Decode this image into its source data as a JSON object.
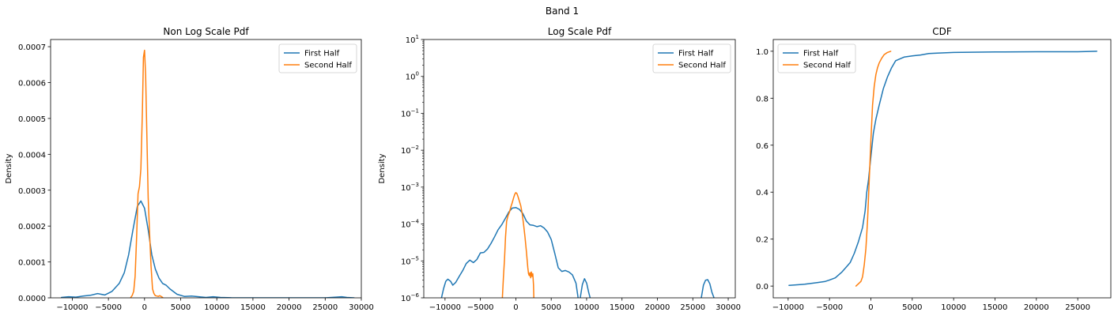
{
  "figure": {
    "suptitle": "Band 1"
  },
  "colors": {
    "first": "#1f77b4",
    "second": "#ff7f0e"
  },
  "chart_data": [
    {
      "type": "line",
      "title": "Non Log Scale Pdf",
      "ylabel": "Density",
      "xlabel": "",
      "yscale": "linear",
      "xlim": [
        -13000,
        30000
      ],
      "ylim": [
        0,
        0.00072
      ],
      "xticks": [
        -10000,
        -5000,
        0,
        5000,
        10000,
        15000,
        20000,
        25000,
        30000
      ],
      "xtick_labels": [
        "−10000",
        "−5000",
        "0",
        "5000",
        "10000",
        "15000",
        "20000",
        "25000",
        "30000"
      ],
      "yticks": [
        0,
        0.0001,
        0.0002,
        0.0003,
        0.0004,
        0.0005,
        0.0006,
        0.0007
      ],
      "ytick_labels": [
        "0.0000",
        "0.0001",
        "0.0002",
        "0.0003",
        "0.0004",
        "0.0005",
        "0.0006",
        "0.0007"
      ],
      "legend": {
        "placement": "top-right",
        "entries": [
          "First Half",
          "Second Half"
        ]
      },
      "series": [
        {
          "name": "First Half",
          "color": "#1f77b4",
          "x": [
            -11500,
            -10500,
            -9500,
            -8500,
            -7500,
            -6500,
            -5500,
            -4500,
            -3500,
            -2800,
            -2200,
            -1600,
            -1000,
            -500,
            0,
            500,
            1000,
            1500,
            2000,
            2500,
            3000,
            3500,
            4500,
            5500,
            6500,
            7500,
            8500,
            9500,
            10500,
            12000,
            15000,
            20000,
            25000,
            26500,
            27300,
            28000,
            29000
          ],
          "y": [
            1e-06,
            3e-06,
            2e-06,
            5e-06,
            7e-06,
            1.2e-05,
            8e-06,
            1.8e-05,
            4e-05,
            7e-05,
            0.00012,
            0.00019,
            0.000255,
            0.00027,
            0.00025,
            0.00019,
            0.00012,
            8e-05,
            5.5e-05,
            4e-05,
            3.5e-05,
            2.5e-05,
            1e-05,
            4e-06,
            5e-06,
            3e-06,
            1e-06,
            3e-06,
            1e-06,
            2e-07,
            1e-07,
            1e-07,
            1e-07,
            2e-06,
            3e-06,
            1e-06,
            1e-07
          ]
        },
        {
          "name": "Second Half",
          "color": "#ff7f0e",
          "x": [
            -1900,
            -1700,
            -1500,
            -1300,
            -1100,
            -900,
            -700,
            -500,
            -300,
            -150,
            0,
            150,
            300,
            500,
            700,
            900,
            1100,
            1300,
            1500,
            1700,
            1900,
            2100,
            2300,
            2500
          ],
          "y": [
            1e-06,
            7e-06,
            1.8e-05,
            6e-05,
            0.00017,
            0.00029,
            0.00031,
            0.00036,
            0.00052,
            0.00067,
            0.00069,
            0.00062,
            0.00047,
            0.00028,
            0.00018,
            9e-05,
            2.5e-05,
            1.2e-05,
            6e-06,
            5e-06,
            4e-06,
            6e-06,
            4e-06,
            1e-06
          ]
        }
      ]
    },
    {
      "type": "line",
      "title": "Log Scale Pdf",
      "ylabel": "Density",
      "xlabel": "",
      "yscale": "log",
      "xlim": [
        -13000,
        31000
      ],
      "ylim": [
        1e-06,
        10
      ],
      "xticks": [
        -10000,
        -5000,
        0,
        5000,
        10000,
        15000,
        20000,
        25000,
        30000
      ],
      "xtick_labels": [
        "−10000",
        "−5000",
        "0",
        "5000",
        "10000",
        "15000",
        "20000",
        "25000",
        "30000"
      ],
      "yticks": [
        1e-06,
        1e-05,
        0.0001,
        0.001,
        0.01,
        0.1,
        1,
        10
      ],
      "ytick_labels": [
        {
          "base": "10",
          "exp": "−6"
        },
        {
          "base": "10",
          "exp": "−5"
        },
        {
          "base": "10",
          "exp": "−4"
        },
        {
          "base": "10",
          "exp": "−3"
        },
        {
          "base": "10",
          "exp": "−2"
        },
        {
          "base": "10",
          "exp": "−1"
        },
        {
          "base": "10",
          "exp": "0"
        },
        {
          "base": "10",
          "exp": "1"
        }
      ],
      "legend": {
        "placement": "top-right",
        "entries": [
          "First Half",
          "Second Half"
        ]
      },
      "series": [
        {
          "name": "First Half",
          "color": "#1f77b4",
          "segments": [
            {
              "x": [
                -10500,
                -10200,
                -9900,
                -9600,
                -9200,
                -8900,
                -8500,
                -8000,
                -7500,
                -7000,
                -6500,
                -6000,
                -5500,
                -5000,
                -4500,
                -4000,
                -3500,
                -3000,
                -2500,
                -2000,
                -1500,
                -1000,
                -500,
                0,
                500,
                1000,
                1500,
                2000,
                2500,
                3000,
                3500,
                4000,
                4500,
                5000,
                5500,
                6000,
                6500,
                7000,
                7500,
                8000,
                8500,
                8800
              ],
              "y": [
                1e-06,
                1.8e-06,
                2.8e-06,
                3.2e-06,
                2.8e-06,
                2.2e-06,
                2.6e-06,
                3.8e-06,
                5.5e-06,
                8.5e-06,
                1.05e-05,
                9e-06,
                1.1e-05,
                1.65e-05,
                1.7e-05,
                2.1e-05,
                3e-05,
                4.5e-05,
                7e-05,
                9.5e-05,
                0.00014,
                0.00021,
                0.00027,
                0.00028,
                0.00025,
                0.00019,
                0.00012,
                9.5e-05,
                9.2e-05,
                8.5e-05,
                9e-05,
                7.8e-05,
                6e-05,
                3.8e-05,
                1.6e-05,
                6.5e-06,
                5.2e-06,
                5.5e-06,
                5e-06,
                4.2e-06,
                2.5e-06,
                1e-06
              ]
            },
            {
              "x": [
                9100,
                9400,
                9700,
                10000,
                10300,
                10500
              ],
              "y": [
                1e-06,
                2.3e-06,
                3.3e-06,
                2.5e-06,
                1.4e-06,
                1e-06
              ]
            },
            {
              "x": [
                26200,
                26500,
                26800,
                27100,
                27400,
                27700,
                28000
              ],
              "y": [
                1e-06,
                2.2e-06,
                3e-06,
                3.1e-06,
                2.4e-06,
                1.4e-06,
                1e-06
              ]
            }
          ]
        },
        {
          "name": "Second Half",
          "color": "#ff7f0e",
          "segments": [
            {
              "x": [
                -1900,
                -1750,
                -1600,
                -1450,
                -1300,
                -1100,
                -900,
                -700,
                -500,
                -300,
                -150,
                0,
                150,
                300,
                500,
                700,
                900,
                1100,
                1300,
                1500,
                1700,
                1800,
                1900,
                2000,
                2100,
                2200,
                2300,
                2400,
                2500,
                2550
              ],
              "y": [
                1e-06,
                3.5e-06,
                1.1e-05,
                4.5e-05,
                0.00012,
                0.00017,
                0.00021,
                0.00029,
                0.00038,
                0.00052,
                0.00064,
                0.00071,
                0.00067,
                0.00056,
                0.00042,
                0.00031,
                0.00019,
                9.5e-05,
                4.5e-05,
                1.8e-05,
                6.5e-06,
                4.5e-06,
                4e-06,
                4.8e-06,
                3.5e-06,
                5e-06,
                3.8e-06,
                4.5e-06,
                2.2e-06,
                1e-06
              ]
            }
          ]
        }
      ]
    },
    {
      "type": "line",
      "title": "CDF",
      "ylabel": "",
      "xlabel": "",
      "yscale": "linear",
      "xlim": [
        -11800,
        29000
      ],
      "ylim": [
        -0.05,
        1.05
      ],
      "xticks": [
        -10000,
        -5000,
        0,
        5000,
        10000,
        15000,
        20000,
        25000
      ],
      "xtick_labels": [
        "−10000",
        "−5000",
        "0",
        "5000",
        "10000",
        "15000",
        "20000",
        "25000"
      ],
      "yticks": [
        0,
        0.2,
        0.4,
        0.6,
        0.8,
        1.0
      ],
      "ytick_labels": [
        "0.0",
        "0.2",
        "0.4",
        "0.6",
        "0.8",
        "1.0"
      ],
      "legend": {
        "placement": "top-left",
        "entries": [
          "First Half",
          "Second Half"
        ]
      },
      "series": [
        {
          "name": "First Half",
          "color": "#1f77b4",
          "x": [
            -9900,
            -8000,
            -6500,
            -5500,
            -5000,
            -4300,
            -3500,
            -3000,
            -2500,
            -2000,
            -1500,
            -1000,
            -700,
            -500,
            -300,
            0,
            300,
            600,
            1000,
            1500,
            2000,
            2500,
            3000,
            4000,
            5000,
            6000,
            7000,
            8000,
            10000,
            12000,
            15000,
            20000,
            25000,
            27300
          ],
          "y": [
            0.003,
            0.008,
            0.015,
            0.02,
            0.026,
            0.035,
            0.06,
            0.08,
            0.1,
            0.14,
            0.19,
            0.25,
            0.32,
            0.4,
            0.45,
            0.55,
            0.65,
            0.71,
            0.77,
            0.84,
            0.89,
            0.93,
            0.96,
            0.975,
            0.98,
            0.984,
            0.99,
            0.992,
            0.995,
            0.996,
            0.997,
            0.998,
            0.998,
            1.0
          ]
        },
        {
          "name": "Second Half",
          "color": "#ff7f0e",
          "x": [
            -1800,
            -1500,
            -1200,
            -1000,
            -800,
            -600,
            -400,
            -200,
            0,
            200,
            400,
            600,
            800,
            1000,
            1300,
            1600,
            2000,
            2400
          ],
          "y": [
            0.0,
            0.01,
            0.02,
            0.04,
            0.09,
            0.16,
            0.28,
            0.45,
            0.62,
            0.77,
            0.85,
            0.9,
            0.93,
            0.95,
            0.97,
            0.985,
            0.995,
            1.0
          ]
        }
      ]
    }
  ]
}
